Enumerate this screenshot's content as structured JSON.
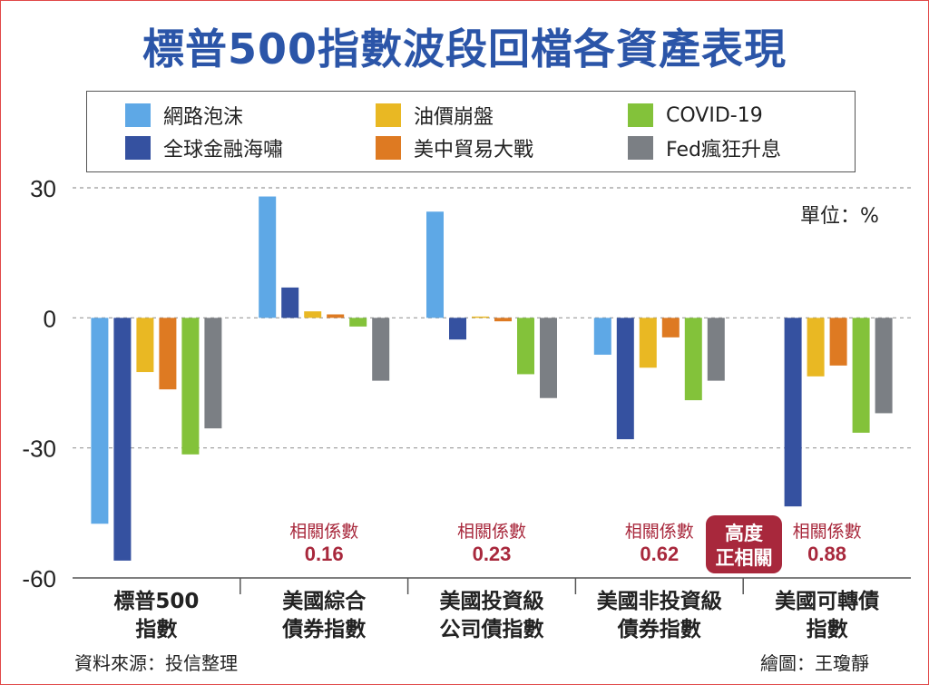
{
  "title": "標普500指數波段回檔各資產表現",
  "unit": "單位：%",
  "source": "資料來源：投信整理",
  "credit": "繪圖：王瓊靜",
  "highlight_badge": "高度正相關",
  "chart_data": {
    "type": "bar",
    "categories": [
      "標普500指數",
      "美國綜合債券指數",
      "美國投資級公司債指數",
      "美國非投資級債券指數",
      "美國可轉債指數"
    ],
    "category_lines": [
      [
        "標普500",
        "指數"
      ],
      [
        "美國綜合",
        "債券指數"
      ],
      [
        "美國投資級",
        "公司債指數"
      ],
      [
        "美國非投資級",
        "債券指數"
      ],
      [
        "美國可轉債",
        "指數"
      ]
    ],
    "ylim": [
      -60,
      30
    ],
    "yticks": [
      30,
      0,
      -30,
      -60
    ],
    "grid": true,
    "legend_position": "top",
    "series": [
      {
        "name": "網路泡沫",
        "color": "#5ea8e6",
        "values": [
          -47.5,
          28,
          24.5,
          -8.5,
          null
        ]
      },
      {
        "name": "全球金融海嘯",
        "color": "#3551a0",
        "values": [
          -56,
          7,
          -5,
          -28,
          -43.5
        ]
      },
      {
        "name": "油價崩盤",
        "color": "#e9b823",
        "values": [
          -12.5,
          1.5,
          0.3,
          -11.5,
          -13.5
        ]
      },
      {
        "name": "美中貿易大戰",
        "color": "#de7a22",
        "values": [
          -16.5,
          0.8,
          -0.8,
          -4.5,
          -11
        ]
      },
      {
        "name": "COVID-19",
        "color": "#83c23a",
        "values": [
          -31.5,
          -2,
          -13,
          -19,
          -26.5
        ]
      },
      {
        "name": "Fed瘋狂升息",
        "color": "#7b7f84",
        "values": [
          -25.5,
          -14.5,
          -18.5,
          -14.5,
          -22
        ]
      }
    ],
    "correlation_label": "相關係數",
    "correlations": [
      null,
      "0.16",
      "0.23",
      "0.62",
      "0.88"
    ]
  }
}
